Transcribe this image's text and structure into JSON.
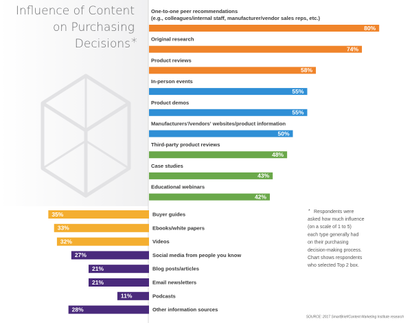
{
  "chart_data": [
    {
      "type": "bar",
      "bar_direction": "right",
      "title": [
        "Influence of Content",
        "on Purchasing",
        "Decisions"
      ],
      "title_mark": "*",
      "title_mark_color": "#3b9ad9",
      "categories": [
        "One-to-one peer recommendations",
        "Original research",
        "Product reviews",
        "In-person events",
        "Product demos",
        "Manufacturers'/vendors' websites/product information",
        "Third-party product reviews",
        "Case studies",
        "Educational webinars"
      ],
      "first_category_detail": "(e.g., colleagues/internal staff, manufacturer/vendor sales reps, etc.)",
      "values": [
        80,
        74,
        58,
        55,
        55,
        50,
        48,
        43,
        42
      ],
      "value_labels": [
        "80%",
        "74%",
        "58%",
        "55%",
        "55%",
        "50%",
        "48%",
        "43%",
        "42%"
      ],
      "colors": [
        "#f0842a",
        "#f0842a",
        "#f0842a",
        "#2f8fd6",
        "#2f8fd6",
        "#2f8fd6",
        "#6aa84a",
        "#6aa84a",
        "#6aa84a"
      ]
    },
    {
      "type": "bar",
      "bar_direction": "left",
      "categories": [
        "Buyer guides",
        "Ebooks/white papers",
        "Videos",
        "Social media from people you know",
        "Blog posts/articles",
        "Email newsletters",
        "Podcasts",
        "Other information sources"
      ],
      "values": [
        35,
        33,
        32,
        27,
        21,
        21,
        11,
        28
      ],
      "value_labels": [
        "35%",
        "33%",
        "32%",
        "27%",
        "21%",
        "21%",
        "11%",
        "28%"
      ],
      "colors": [
        "#f4ae30",
        "#f4ae30",
        "#f4ae30",
        "#4a2a7c",
        "#4a2a7c",
        "#4a2a7c",
        "#4a2a7c",
        "#4a2a7c"
      ],
      "footnote_mark": "*",
      "footnote": [
        "Respondents were",
        "asked how much influence",
        "(on a scale of 1 to 5)",
        "each type generally had",
        "on their purchasing",
        "decision-making process.",
        "Chart shows respondents",
        "who selected Top 2 box."
      ],
      "source": "SOURCE: 2017 SmartBrief/Content Marketing Institute research"
    }
  ]
}
